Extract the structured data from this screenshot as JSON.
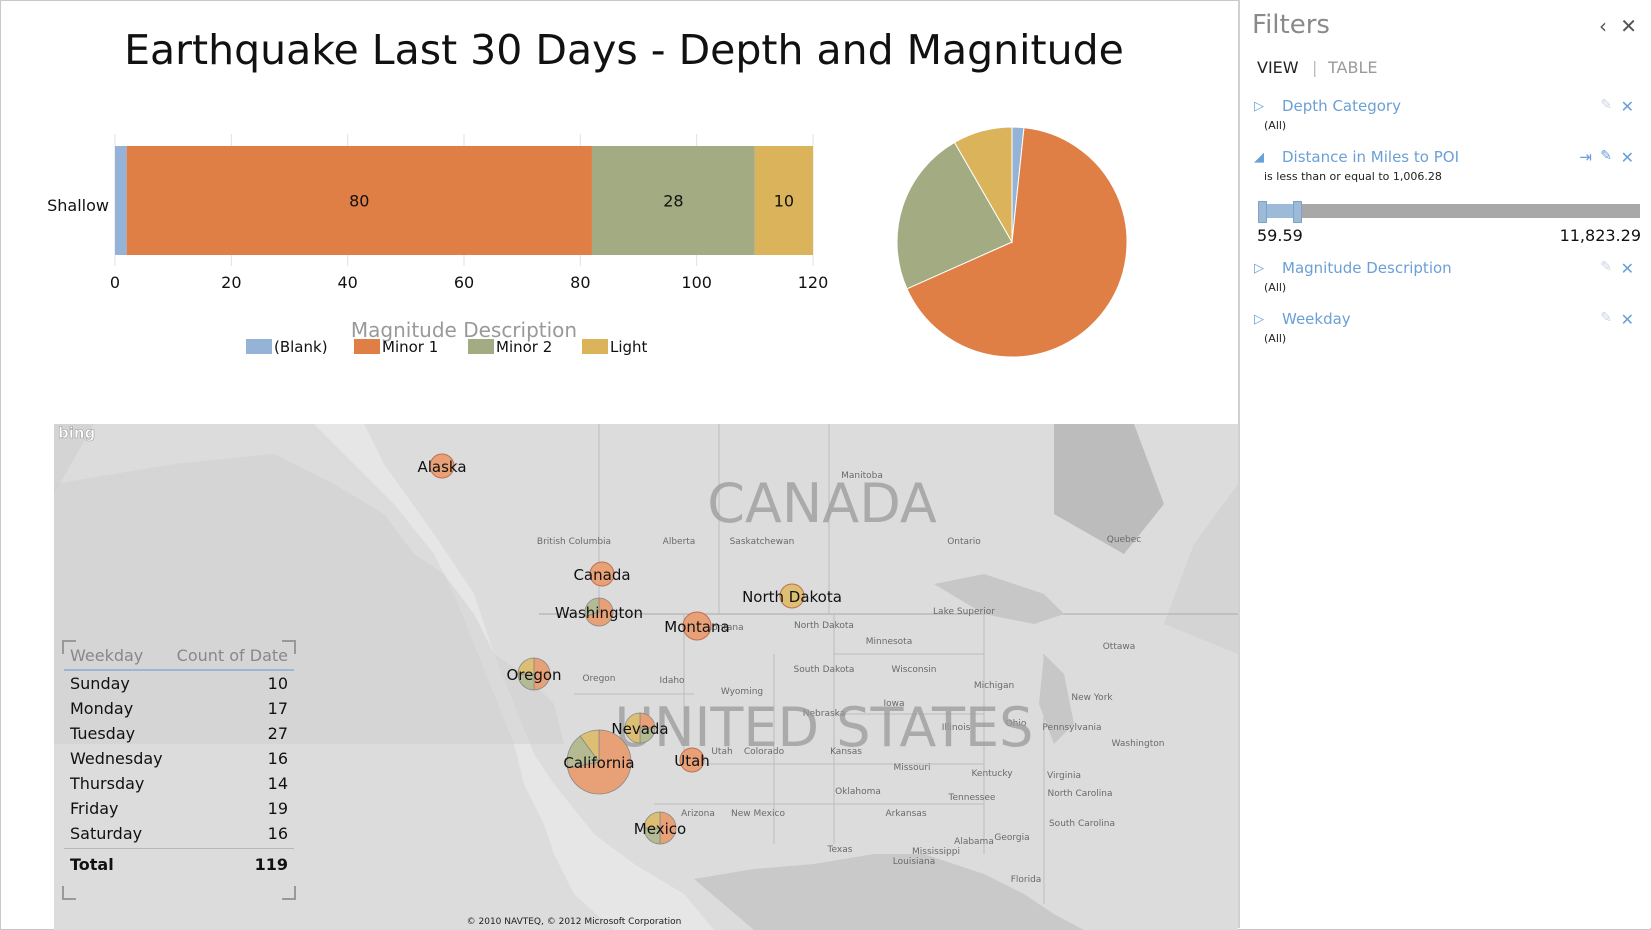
{
  "report": {
    "title": "Earthquake Last 30 Days - Depth and Magnitude"
  },
  "chart_data": [
    {
      "type": "bar",
      "orientation": "horizontal",
      "stacked": true,
      "categories": [
        "Shallow"
      ],
      "series": [
        {
          "name": "(Blank)",
          "values": [
            2
          ],
          "color": "#95b3d7"
        },
        {
          "name": "Minor 1",
          "values": [
            80
          ],
          "color": "#e07f45"
        },
        {
          "name": "Minor 2",
          "values": [
            28
          ],
          "color": "#a2ab81"
        },
        {
          "name": "Light",
          "values": [
            10
          ],
          "color": "#dbb35a"
        }
      ],
      "xlim": [
        0,
        120
      ],
      "xticks": [
        0,
        20,
        40,
        60,
        80,
        100,
        120
      ],
      "legend_title": "Magnitude Description",
      "legend_position": "bottom",
      "grid": true
    },
    {
      "type": "pie",
      "slices": [
        {
          "label": "(Blank)",
          "value": 2,
          "color": "#95b3d7"
        },
        {
          "label": "Minor 1",
          "value": 80,
          "color": "#e07f45"
        },
        {
          "label": "Minor 2",
          "value": 28,
          "color": "#a2ab81"
        },
        {
          "label": "Light",
          "value": 10,
          "color": "#dbb35a"
        }
      ]
    }
  ],
  "map": {
    "logo": "bing",
    "country_labels": [
      "CANADA",
      "UNITED STATES"
    ],
    "region_labels": [
      "Manitoba",
      "British Columbia",
      "Alberta",
      "Saskatchewan",
      "Ontario",
      "Quebec",
      "Montana",
      "North Dakota",
      "Minnesota",
      "South Dakota",
      "Wisconsin",
      "Michigan",
      "Oregon",
      "Idaho",
      "Wyoming",
      "Iowa",
      "Nebraska",
      "Illinois",
      "Ohio",
      "Pennsylvania",
      "New York",
      "Utah",
      "Colorado",
      "Kansas",
      "Missouri",
      "Kentucky",
      "Virginia",
      "Arizona",
      "New Mexico",
      "Oklahoma",
      "Tennessee",
      "North Carolina",
      "Arkansas",
      "South Carolina",
      "Alabama",
      "Georgia",
      "Texas",
      "Mississippi",
      "Louisiana",
      "Florida",
      "Ottawa",
      "Washington",
      "Lake Superior"
    ],
    "locations": [
      {
        "label": "Alaska",
        "slices": [
          1
        ]
      },
      {
        "label": "Canada",
        "slices": [
          1
        ]
      },
      {
        "label": "Washington",
        "slices": [
          0.7,
          0.3
        ]
      },
      {
        "label": "Montana",
        "slices": [
          1
        ]
      },
      {
        "label": "North Dakota",
        "slices": [
          0,
          0,
          1
        ]
      },
      {
        "label": "Oregon",
        "slices": [
          0.5,
          0.25,
          0.25
        ]
      },
      {
        "label": "Nevada",
        "slices": [
          0.25,
          0.25,
          0.5
        ]
      },
      {
        "label": "California",
        "slices": [
          0.72,
          0.18,
          0.1
        ]
      },
      {
        "label": "Utah",
        "slices": [
          1
        ]
      },
      {
        "label": "Mexico",
        "slices": [
          0.5,
          0.25,
          0.25
        ]
      }
    ],
    "copyright": "© 2010 NAVTEQ, © 2012 Microsoft Corporation"
  },
  "weekday_table": {
    "headers": [
      "Weekday",
      "Count of Date"
    ],
    "rows": [
      [
        "Sunday",
        "10"
      ],
      [
        "Monday",
        "17"
      ],
      [
        "Tuesday",
        "27"
      ],
      [
        "Wednesday",
        "16"
      ],
      [
        "Thursday",
        "14"
      ],
      [
        "Friday",
        "19"
      ],
      [
        "Saturday",
        "16"
      ]
    ],
    "total": [
      "Total",
      "119"
    ]
  },
  "filters": {
    "title": "Filters",
    "tabs": {
      "view": "VIEW",
      "separator": "|",
      "table": "TABLE"
    },
    "items": [
      {
        "name": "Depth Category",
        "value": "(All)"
      },
      {
        "name": "Distance in Miles to POI",
        "value": "is less than or equal to 1,006.28"
      },
      {
        "name": "Magnitude Description",
        "value": "(All)"
      },
      {
        "name": "Weekday",
        "value": "(All)"
      }
    ],
    "slider": {
      "min_label": "59.59",
      "max_label": "11,823.29",
      "range_min": 59.59,
      "range_max": 11823.29,
      "selected_max": 1006.28
    },
    "icons": {
      "collapse": "chevron-left-icon",
      "close": "close-icon",
      "clear": "close-icon",
      "eraser": "eraser-icon",
      "go_to": "go-to-icon"
    }
  }
}
